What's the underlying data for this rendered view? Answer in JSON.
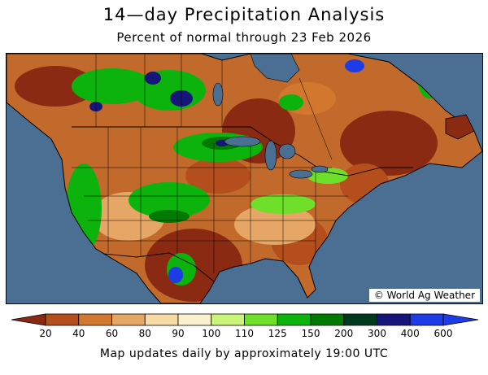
{
  "header": {
    "title": "14—day Precipitation Analysis",
    "subtitle": "Percent of normal through 23 Feb 2026"
  },
  "map": {
    "credit": "© World Ag Weather",
    "colors": {
      "ocean": "#4a6f93",
      "border": "#000000"
    }
  },
  "legend": {
    "labels": [
      "20",
      "40",
      "60",
      "80",
      "90",
      "100",
      "110",
      "125",
      "150",
      "200",
      "300",
      "400",
      "600"
    ],
    "colors": [
      "#8b2a12",
      "#b44e1c",
      "#d2782e",
      "#e6a766",
      "#f6d9a3",
      "#fbf1cf",
      "#c9f57a",
      "#6fe02a",
      "#0db30d",
      "#007a00",
      "#003a1e",
      "#15157a",
      "#1e3ce6"
    ]
  },
  "footer": {
    "note": "Map updates daily by approximately 19:00 UTC"
  }
}
